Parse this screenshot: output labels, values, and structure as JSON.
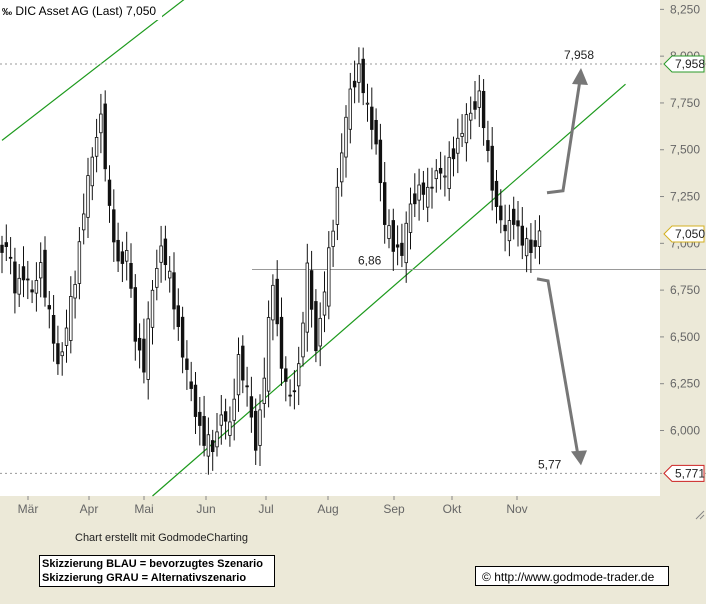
{
  "header": {
    "title_icon": "chart-scale-icon",
    "title": "DIC Asset AG (Last) 7,050"
  },
  "footer": {
    "credit": "Chart erstellt mit GodmodeCharting",
    "legend": [
      "Skizzierung BLAU = bevorzugtes Szenario",
      "Skizzierung GRAU = Alternativszenario"
    ],
    "copyright": "http://www.godmode-trader.de",
    "copyright_icon": "copyright-icon"
  },
  "chart_data": {
    "type": "candlestick",
    "title": "DIC Asset AG (Last) 7,050",
    "x_labels": [
      "Mär",
      "Apr",
      "Mai",
      "Jun",
      "Jul",
      "Aug",
      "Sep",
      "Okt",
      "Nov"
    ],
    "y_ticks": [
      "6,000",
      "6,250",
      "6,500",
      "6,750",
      "7,000",
      "7,250",
      "7,500",
      "7,750",
      "8,000",
      "8,250"
    ],
    "ylim": [
      5.65,
      8.3
    ],
    "grid": false,
    "price_path": [
      [
        0,
        6.95
      ],
      [
        2,
        7.0
      ],
      [
        4,
        6.75
      ],
      [
        6,
        6.85
      ],
      [
        8,
        6.72
      ],
      [
        10,
        6.9
      ],
      [
        12,
        6.6
      ],
      [
        14,
        6.35
      ],
      [
        16,
        6.55
      ],
      [
        18,
        6.8
      ],
      [
        20,
        7.2
      ],
      [
        22,
        7.45
      ],
      [
        24,
        7.7
      ],
      [
        26,
        7.15
      ],
      [
        28,
        6.9
      ],
      [
        30,
        6.95
      ],
      [
        32,
        6.5
      ],
      [
        34,
        6.35
      ],
      [
        36,
        6.75
      ],
      [
        38,
        7.0
      ],
      [
        40,
        6.8
      ],
      [
        42,
        6.55
      ],
      [
        44,
        6.3
      ],
      [
        46,
        6.1
      ],
      [
        48,
        5.95
      ],
      [
        50,
        5.9
      ],
      [
        52,
        6.1
      ],
      [
        54,
        6.0
      ],
      [
        56,
        6.4
      ],
      [
        58,
        6.2
      ],
      [
        60,
        5.92
      ],
      [
        62,
        6.3
      ],
      [
        64,
        6.8
      ],
      [
        66,
        6.35
      ],
      [
        68,
        6.15
      ],
      [
        70,
        6.35
      ],
      [
        72,
        6.85
      ],
      [
        74,
        6.45
      ],
      [
        76,
        6.75
      ],
      [
        78,
        7.1
      ],
      [
        80,
        7.5
      ],
      [
        82,
        7.8
      ],
      [
        84,
        7.95
      ],
      [
        86,
        7.7
      ],
      [
        88,
        7.55
      ],
      [
        90,
        7.1
      ],
      [
        92,
        7.0
      ],
      [
        94,
        6.95
      ],
      [
        96,
        7.2
      ],
      [
        98,
        7.3
      ],
      [
        100,
        7.25
      ],
      [
        102,
        7.4
      ],
      [
        104,
        7.35
      ],
      [
        106,
        7.5
      ],
      [
        108,
        7.6
      ],
      [
        110,
        7.7
      ],
      [
        112,
        7.8
      ],
      [
        114,
        7.45
      ],
      [
        116,
        7.2
      ],
      [
        118,
        7.05
      ],
      [
        120,
        7.15
      ],
      [
        122,
        7.0
      ],
      [
        124,
        6.97
      ],
      [
        126,
        7.05
      ]
    ],
    "horizontal_lines": [
      {
        "value": 7.958,
        "label": "7,958",
        "marker_label": "7,958"
      },
      {
        "value": 6.86,
        "label": "6,86"
      },
      {
        "value": 5.771,
        "label": "5,77",
        "marker_label": "5,771"
      }
    ],
    "last_value": {
      "value": 7.05,
      "label": "7,050"
    },
    "trendlines": [
      {
        "name": "upper",
        "from": [
          0,
          7.55
        ],
        "to": [
          45,
          8.35
        ]
      },
      {
        "name": "lower",
        "from": [
          35,
          5.65
        ],
        "to": [
          145,
          7.85
        ]
      }
    ],
    "scenario_arrows": [
      {
        "name": "bevorzugtes Szenario",
        "from": 7.27,
        "to": 7.958
      },
      {
        "name": "Alternativszenario",
        "from": 6.81,
        "to": 5.771
      }
    ]
  }
}
